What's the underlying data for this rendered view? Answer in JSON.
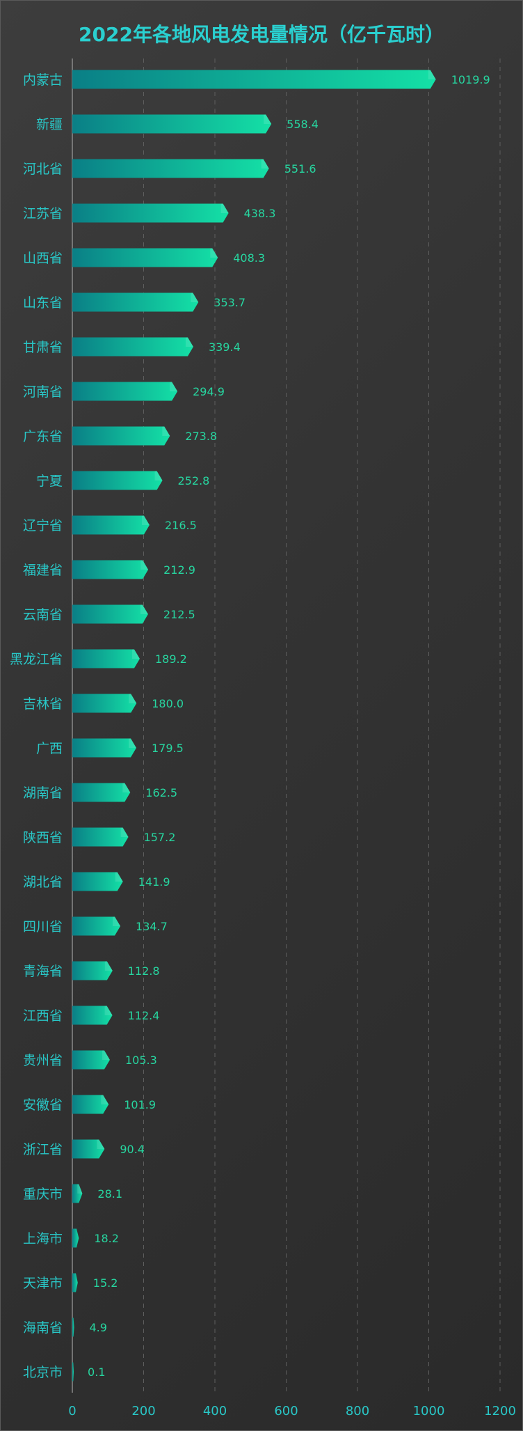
{
  "colors": {
    "title": "#2ad0d0",
    "axis_text": "#29c7c7",
    "value_text": "#27d6a0",
    "bar_start": "#0a7f86",
    "bar_end": "#14e0a6",
    "grid": "#5e5e5e",
    "axis_line": "#8a8a8a"
  },
  "chart_data": {
    "type": "bar",
    "orientation": "horizontal",
    "title": "2022年各地风电发电量情况（亿千瓦时）",
    "xlabel": "",
    "ylabel": "",
    "xlim": [
      0,
      1200
    ],
    "x_ticks": [
      "0",
      "200",
      "400",
      "600",
      "800",
      "1000",
      "1200"
    ],
    "grid": "vertical dashed",
    "legend": "none",
    "categories": [
      "内蒙古",
      "新疆",
      "河北省",
      "江苏省",
      "山西省",
      "山东省",
      "甘肃省",
      "河南省",
      "广东省",
      "宁夏",
      "辽宁省",
      "福建省",
      "云南省",
      "黑龙江省",
      "吉林省",
      "广西",
      "湖南省",
      "陕西省",
      "湖北省",
      "四川省",
      "青海省",
      "江西省",
      "贵州省",
      "安徽省",
      "浙江省",
      "重庆市",
      "上海市",
      "天津市",
      "海南省",
      "北京市"
    ],
    "values": [
      1019.9,
      558.4,
      551.6,
      438.3,
      408.3,
      353.7,
      339.4,
      294.9,
      273.8,
      252.8,
      216.5,
      212.9,
      212.5,
      189.2,
      180.0,
      179.5,
      162.5,
      157.2,
      141.9,
      134.7,
      112.8,
      112.4,
      105.3,
      101.9,
      90.4,
      28.1,
      18.2,
      15.2,
      4.9,
      0.1
    ],
    "value_labels": [
      "1019.9",
      "558.4",
      "551.6",
      "438.3",
      "408.3",
      "353.7",
      "339.4",
      "294.9",
      "273.8",
      "252.8",
      "216.5",
      "212.9",
      "212.5",
      "189.2",
      "180.0",
      "179.5",
      "162.5",
      "157.2",
      "141.9",
      "134.7",
      "112.8",
      "112.4",
      "105.3",
      "101.9",
      "90.4",
      "28.1",
      "18.2",
      "15.2",
      "4.9",
      "0.1"
    ]
  }
}
